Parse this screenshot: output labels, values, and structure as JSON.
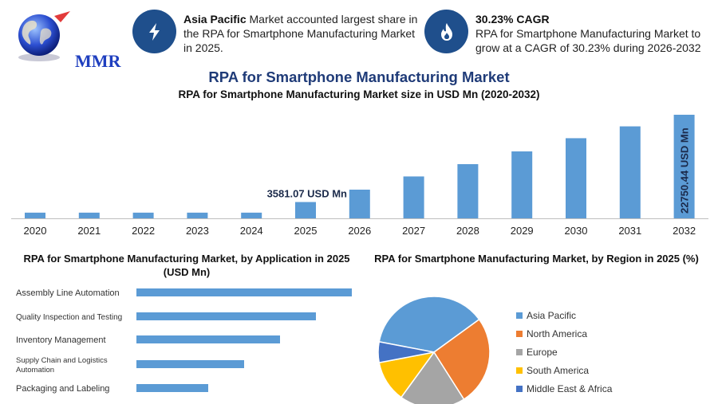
{
  "logo": {
    "text": "MMR"
  },
  "info1": {
    "bold": "Asia Pacific",
    "text": " Market accounted largest share in the RPA for Smartphone Manufacturing Market in 2025.",
    "icon": "lightning-bolt-icon"
  },
  "info2": {
    "bold": "30.23% CAGR",
    "text": "RPA for Smartphone Manufacturing Market to grow at a CAGR of 30.23% during 2026-2032",
    "icon": "flame-drop-icon"
  },
  "colors": {
    "bar": "#5b9bd5",
    "navy": "#1f4f8c",
    "title": "#1f3b78"
  },
  "chart_data": [
    {
      "type": "bar",
      "title": "RPA for Smartphone Manufacturing Market",
      "subtitle": "RPA for Smartphone Manufacturing Market size in USD Mn (2020-2032)",
      "categories": [
        "2020",
        "2021",
        "2022",
        "2023",
        "2024",
        "2025",
        "2026",
        "2027",
        "2028",
        "2029",
        "2030",
        "2031",
        "2032"
      ],
      "values": [
        1250,
        1250,
        1250,
        1250,
        1250,
        3581.07,
        6300,
        9200,
        11900,
        14700,
        17600,
        20200,
        22750.44
      ],
      "annotations": [
        {
          "category": "2025",
          "text": "3581.07 USD Mn"
        },
        {
          "category": "2032",
          "text": "22750.44 USD Mn"
        }
      ],
      "grid": false
    },
    {
      "type": "bar",
      "orientation": "horizontal",
      "title": "RPA for Smartphone Manufacturing Market, by Application in 2025 (USD Mn)",
      "categories": [
        "Assembly Line Automation",
        "Quality Inspection and Testing",
        "Inventory Management",
        "Supply Chain and Logistics Automation",
        "Packaging and Labeling"
      ],
      "values": [
        1080,
        900,
        720,
        540,
        360
      ]
    },
    {
      "type": "pie",
      "title": "RPA for Smartphone Manufacturing Market, by Region in 2025 (%)",
      "labels": [
        "Asia Pacific",
        "North America",
        "Europe",
        "South America",
        "Middle East & Africa"
      ],
      "values": [
        37,
        26,
        19,
        12,
        6
      ],
      "colors": [
        "#5b9bd5",
        "#ed7d31",
        "#a5a5a5",
        "#ffc000",
        "#4472c4"
      ],
      "legend": "right"
    }
  ]
}
